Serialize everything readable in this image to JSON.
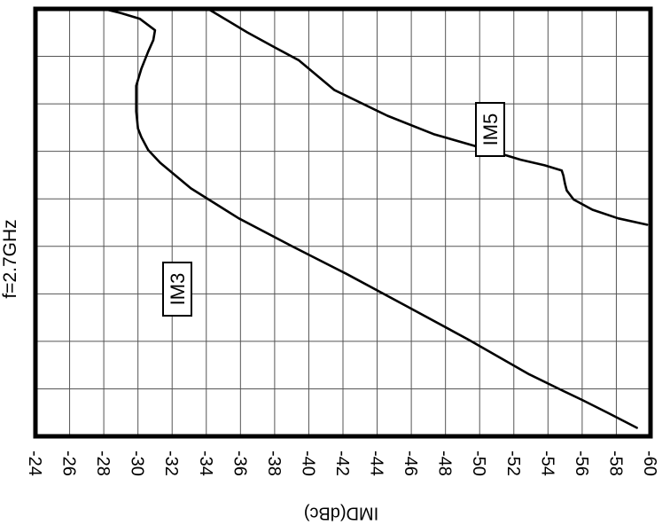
{
  "chart_data": {
    "type": "line",
    "orientation": "rotated",
    "title": "",
    "xlabel": "IMD(dBc)",
    "ylabel": "f=2.7GHz",
    "xlim": [
      -24,
      -60
    ],
    "xticks": [
      "-24",
      "-26",
      "-28",
      "-30",
      "-32",
      "-34",
      "-36",
      "-38",
      "-40",
      "-42",
      "-44",
      "-46",
      "-48",
      "-50",
      "-52",
      "-54",
      "-56",
      "-58",
      "-60"
    ],
    "grid": true,
    "series": [
      {
        "name": "IM3",
        "imd": [
          -28.0,
          -29.0,
          -30.1,
          -31.0,
          -30.9,
          -30.6,
          -30.2,
          -29.9,
          -29.9,
          -30.0,
          -30.2,
          -30.6,
          -31.3,
          -33.1,
          -35.9,
          -39.0,
          -42.2,
          -45.7,
          -49.4,
          -52.9,
          -54.7,
          -56.0,
          -57.5,
          -59.2
        ],
        "level": [
          0.0,
          0.01,
          0.023,
          0.05,
          0.073,
          0.1,
          0.14,
          0.18,
          0.24,
          0.28,
          0.3,
          0.33,
          0.36,
          0.42,
          0.49,
          0.555,
          0.62,
          0.695,
          0.775,
          0.855,
          0.89,
          0.915,
          0.945,
          0.98
        ]
      },
      {
        "name": "IM5",
        "imd": [
          -34.1,
          -36.4,
          -38.0,
          -39.4,
          -41.5,
          -44.6,
          -47.3,
          -50.1,
          -52.4,
          -53.8,
          -54.8,
          -54.9,
          -55.0,
          -55.1,
          -55.5,
          -56.6,
          -58.1,
          -59.8
        ],
        "level": [
          0.0,
          0.055,
          0.09,
          0.12,
          0.19,
          0.25,
          0.293,
          0.325,
          0.353,
          0.366,
          0.378,
          0.39,
          0.41,
          0.425,
          0.446,
          0.47,
          0.49,
          0.505
        ]
      }
    ],
    "annotations": [
      "IM3",
      "IM5"
    ]
  }
}
